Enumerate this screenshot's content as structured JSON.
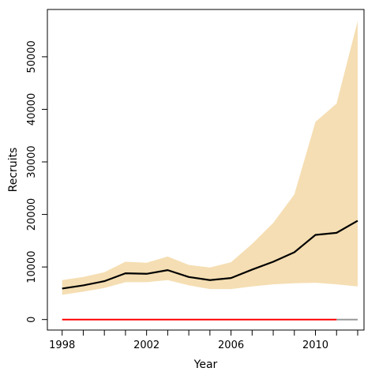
{
  "chart_data": {
    "type": "area",
    "xlabel": "Year",
    "ylabel": "Recruits",
    "xlim": [
      1997.3,
      2012.3
    ],
    "ylim": [
      -2000,
      59000
    ],
    "x_ticks": [
      1998,
      2002,
      2006,
      2010
    ],
    "x_minor_ticks": [
      1998,
      1999,
      2000,
      2001,
      2002,
      2003,
      2004,
      2005,
      2006,
      2007,
      2008,
      2009,
      2010,
      2011,
      2012
    ],
    "y_ticks": [
      0,
      10000,
      20000,
      30000,
      40000,
      50000
    ],
    "x": [
      1998,
      1999,
      2000,
      2001,
      2002,
      2003,
      2004,
      2005,
      2006,
      2007,
      2008,
      2009,
      2010,
      2011,
      2012
    ],
    "series": [
      {
        "role": "median",
        "color": "#000000",
        "values": [
          5900,
          6500,
          7300,
          8800,
          8700,
          9400,
          8100,
          7500,
          7900,
          9500,
          11000,
          12800,
          16100,
          16500,
          18800
        ]
      },
      {
        "role": "band",
        "color": "#F5DEB3",
        "lower": [
          4700,
          5300,
          6000,
          7100,
          7100,
          7500,
          6500,
          5800,
          5800,
          6300,
          6700,
          6900,
          7000,
          6700,
          6300
        ],
        "upper": [
          7500,
          8100,
          9000,
          11000,
          10800,
          12000,
          10400,
          9900,
          10900,
          14400,
          18400,
          23800,
          37600,
          41100,
          56800
        ]
      },
      {
        "role": "reference",
        "color": "#FF0000",
        "x": [
          1998,
          2011
        ],
        "values": [
          0,
          0
        ]
      },
      {
        "role": "reference-tail",
        "color": "#999999",
        "x": [
          2011,
          2012
        ],
        "values": [
          0,
          0
        ]
      }
    ]
  }
}
